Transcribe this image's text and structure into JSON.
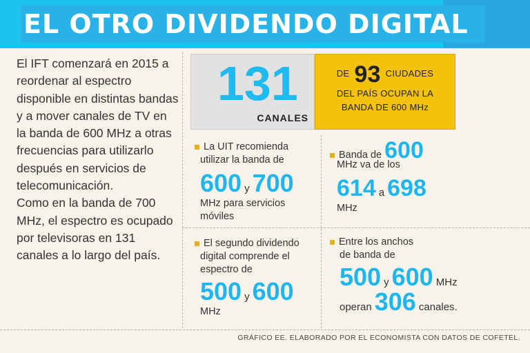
{
  "header": {
    "title": "EL OTRO DIVIDENDO DIGITAL"
  },
  "intro": {
    "paragraph1": "El IFT comenzará en 2015 a reordenar al espectro disponible en distintas bandas y a mover canales de TV en la banda de 600 MHz a otras frecuencias para utilizarlo después en servicios de telecomunicación.",
    "paragraph2": "Como en la banda de 700 MHz, el espectro es ocupado por televisoras en 131 canales a lo largo del país."
  },
  "stat_channels": {
    "value": "131",
    "label": "CANALES"
  },
  "stat_cities": {
    "prefix": "DE",
    "value": "93",
    "suffix": "CIUDADES",
    "line2": "DEL PAÍS OCUPAN LA",
    "line3": "BANDA DE 600 MHz"
  },
  "block_uit": {
    "line1": "La UIT recomienda",
    "line2": "utilizar la banda de",
    "value1": "600",
    "connector": "y",
    "value2": "700",
    "line3": "MHz para servicios",
    "line4": "móviles"
  },
  "block_range": {
    "line1": "Banda de",
    "value": "600",
    "line2": "MHz va de los",
    "from": "614",
    "connector": "a",
    "to": "698",
    "unit": "MHz"
  },
  "block_second": {
    "line1": "El segundo dividendo",
    "line2": "digital comprende el",
    "line3": "espectro de",
    "value1": "500",
    "connector": "y",
    "value2": "600",
    "unit": "MHz"
  },
  "block_widths": {
    "line1": "Entre los anchos",
    "line2": "de banda de",
    "value1": "500",
    "connector": "y",
    "value2": "600",
    "unit": "MHz",
    "pre": "operan",
    "count": "306",
    "post": "canales."
  },
  "footer": {
    "credit": "GRÁFICO EE. ELABORADO POR EL ECONOMISTA CON DATOS DE COFETEL."
  }
}
